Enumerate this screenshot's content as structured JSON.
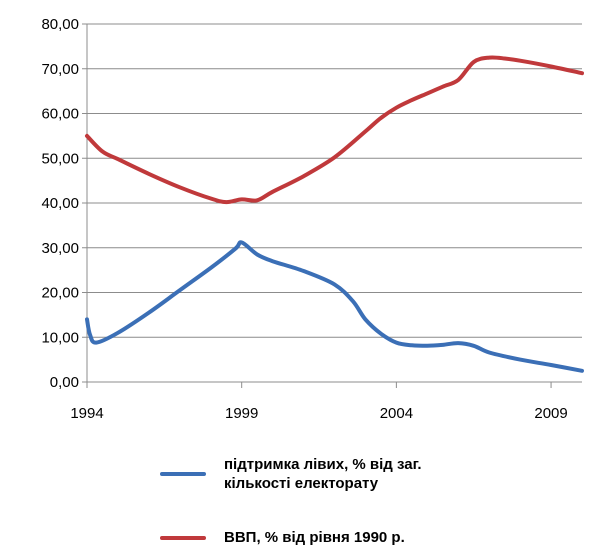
{
  "chart_data": {
    "type": "line",
    "x_ticks": [
      "1994",
      "1999",
      "2004",
      "2009"
    ],
    "y_ticks": [
      "0,00",
      "10,00",
      "20,00",
      "30,00",
      "40,00",
      "50,00",
      "60,00",
      "70,00",
      "80,00"
    ],
    "xlim": [
      1994,
      2010
    ],
    "ylim": [
      0,
      80
    ],
    "grid": "horizontal",
    "legend_position": "bottom",
    "series": [
      {
        "name": "підтримка лівих, % від заг. кількості електорату",
        "color": "#3b6fb6",
        "x": [
          1994,
          1994.1,
          1994.3,
          1995,
          1996,
          1997,
          1998,
          1998.8,
          1999,
          1999.5,
          2000,
          2001,
          2002,
          2002.6,
          2003,
          2003.5,
          2004,
          2004.5,
          2005,
          2005.5,
          2006,
          2006.5,
          2007,
          2008,
          2009,
          2010
        ],
        "y": [
          14,
          10.5,
          8.8,
          11,
          15.5,
          20.5,
          25.5,
          29.8,
          31.2,
          28.5,
          27,
          24.8,
          21.8,
          18,
          14,
          10.8,
          8.8,
          8.2,
          8.1,
          8.3,
          8.7,
          8.1,
          6.6,
          5,
          3.8,
          2.5
        ]
      },
      {
        "name": "ВВП, % від рівня 1990 р.",
        "color": "#c0393b",
        "x": [
          1994,
          1994.5,
          1995,
          1996,
          1997,
          1998,
          1998.5,
          1999,
          1999.5,
          2000,
          2001,
          2002,
          2003,
          2003.5,
          2004,
          2004.5,
          2005,
          2005.5,
          2006,
          2006.5,
          2007,
          2007.5,
          2008,
          2009,
          2010
        ],
        "y": [
          55,
          51.5,
          49.8,
          46.5,
          43.5,
          41,
          40.2,
          40.8,
          40.6,
          42.5,
          46,
          50.2,
          56,
          59,
          61.3,
          63,
          64.5,
          66,
          67.5,
          71.5,
          72.5,
          72.3,
          71.8,
          70.5,
          69
        ]
      }
    ]
  }
}
